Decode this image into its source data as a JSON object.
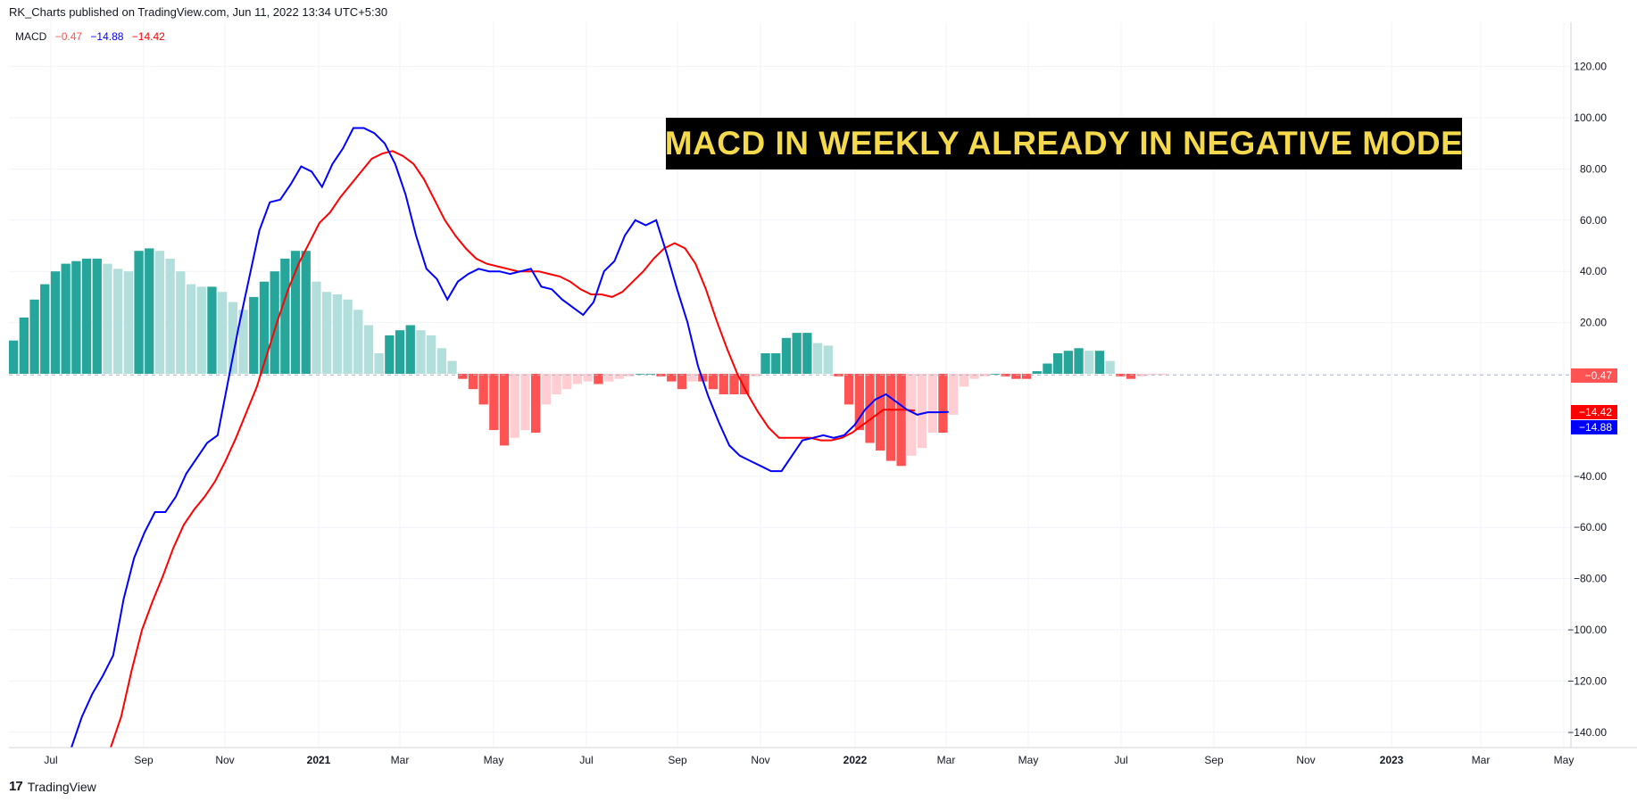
{
  "header": {
    "text": "RK_Charts published on TradingView.com, Jun 11, 2022 13:34 UTC+5:30"
  },
  "legend": {
    "name": "MACD",
    "hist": "−0.47",
    "macd": "−14.88",
    "signal": "−14.42"
  },
  "annotation": {
    "text": "MACD IN WEEKLY ALREADY IN NEGATIVE MODE",
    "bg_color": "#000000",
    "text_color": "#f5d94c"
  },
  "footer": {
    "brand": "TradingView"
  },
  "price_labels": {
    "hist": {
      "text": "−0.47",
      "color": "#ff5252"
    },
    "signal": {
      "text": "−14.42",
      "color": "#ff0000"
    },
    "macd": {
      "text": "−14.88",
      "color": "#0000ff"
    }
  },
  "chart_data": {
    "type": "line",
    "indicator": "MACD",
    "ylim": [
      -146,
      138
    ],
    "y_ticks": [
      120,
      100,
      80,
      60,
      40,
      20,
      -40,
      -60,
      -80,
      -100,
      -120,
      -140
    ],
    "x_ticks": [
      "Jul",
      "Sep",
      "Nov",
      "2021",
      "Mar",
      "May",
      "Jul",
      "Sep",
      "Nov",
      "2022",
      "Mar",
      "May",
      "Jul",
      "Sep",
      "Nov",
      "2023",
      "Mar",
      "May"
    ],
    "colors": {
      "macd_line": "#0000ff",
      "signal_line": "#ff0000",
      "hist_pos_rising": "#26a69a",
      "hist_pos_falling": "#b2dfdb",
      "hist_neg_falling": "#ff5252",
      "hist_neg_rising": "#ffcdd2"
    },
    "series": [
      {
        "name": "Histogram",
        "kind": "histogram",
        "values": [
          13,
          22,
          29,
          35,
          40,
          43,
          44,
          45,
          45,
          43,
          41,
          40,
          48,
          49,
          48,
          45,
          40,
          35,
          34,
          34,
          32,
          28,
          25,
          30,
          36,
          40,
          45,
          48,
          48,
          36,
          32,
          31,
          29,
          25,
          19,
          8,
          15,
          17,
          19,
          17,
          15,
          10,
          5,
          -2,
          -6,
          -12,
          -22,
          -28,
          -25,
          -22,
          -23,
          -12,
          -8,
          -6,
          -4,
          -3,
          -4,
          -3,
          -2,
          -1,
          0,
          0,
          -1,
          -3,
          -6,
          -3,
          -3,
          -6,
          -8,
          -8,
          -8,
          -1,
          8,
          8,
          14,
          16,
          16,
          12,
          11,
          -1,
          -12,
          -22,
          -27,
          -30,
          -34,
          -36,
          -32,
          -29,
          -23,
          -23,
          -16,
          -5,
          -2,
          -1,
          0,
          -1,
          -2,
          -2,
          1,
          4,
          8,
          9,
          10,
          9,
          9,
          5,
          -1,
          -2,
          -1,
          -0.5,
          -0.47
        ]
      },
      {
        "name": "MACD",
        "kind": "line",
        "values": [
          -146,
          -134,
          -125,
          -118,
          -110,
          -88,
          -72,
          -62,
          -54,
          -54,
          -48,
          -39,
          -33,
          -27,
          -24,
          -3,
          18,
          37,
          56,
          67,
          68,
          74,
          81,
          79,
          73,
          82,
          88,
          96,
          96,
          94,
          90,
          82,
          70,
          54,
          41,
          37,
          29,
          36,
          39,
          41,
          40,
          40,
          39,
          40,
          41,
          34,
          33,
          29,
          26,
          23,
          28,
          40,
          44,
          54,
          60,
          58,
          60,
          47,
          33,
          20,
          3,
          -9,
          -19,
          -28,
          -32,
          -34,
          -36,
          -38,
          -38,
          -32,
          -26,
          -25,
          -24,
          -25,
          -24,
          -20,
          -14,
          -10,
          -8,
          -11,
          -14,
          -16,
          -15,
          -15,
          -14.88
        ]
      },
      {
        "name": "Signal",
        "kind": "line",
        "values": [
          -146,
          -134,
          -116,
          -100,
          -89,
          -79,
          -68,
          -59,
          -53,
          -48,
          -42,
          -34,
          -25,
          -15,
          -5,
          8,
          21,
          33,
          43,
          51,
          59,
          63,
          69,
          74,
          79,
          84,
          86,
          87,
          85,
          82,
          76,
          68,
          60,
          54,
          49,
          45,
          43,
          42,
          41,
          40,
          40,
          40,
          39,
          38,
          36,
          33,
          31,
          31,
          30,
          32,
          36,
          40,
          45,
          49,
          51,
          49,
          43,
          33,
          21,
          10,
          0,
          -8,
          -15,
          -21,
          -25,
          -25,
          -25,
          -25,
          -26,
          -26,
          -25,
          -23,
          -20,
          -17,
          -14,
          -14,
          -14,
          -14.42
        ]
      }
    ]
  }
}
